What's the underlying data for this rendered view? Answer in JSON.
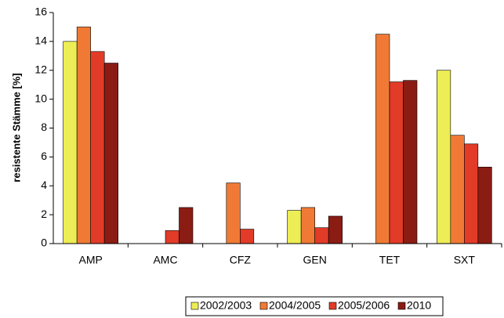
{
  "chart_data": {
    "type": "bar",
    "y_label": "resistente Stämme [%]",
    "categories": [
      "AMP",
      "AMC",
      "CFZ",
      "GEN",
      "TET",
      "SXT"
    ],
    "series": [
      {
        "name": "2002/2003",
        "color": "#eded55",
        "values": [
          14,
          0,
          0,
          2.3,
          0,
          12
        ]
      },
      {
        "name": "2004/2005",
        "color": "#f07a35",
        "values": [
          15,
          0,
          4.2,
          2.5,
          14.5,
          7.5
        ]
      },
      {
        "name": "2005/2006",
        "color": "#e23b28",
        "values": [
          13.3,
          0.9,
          1.0,
          1.1,
          11.2,
          6.9
        ]
      },
      {
        "name": "2010",
        "color": "#8b1c14",
        "values": [
          12.5,
          2.5,
          0,
          1.9,
          11.3,
          5.3
        ]
      }
    ],
    "ylim": [
      0,
      16
    ],
    "yticks": [
      0,
      2,
      4,
      6,
      8,
      10,
      12,
      14,
      16
    ],
    "grid": false,
    "legend": "bottom"
  }
}
